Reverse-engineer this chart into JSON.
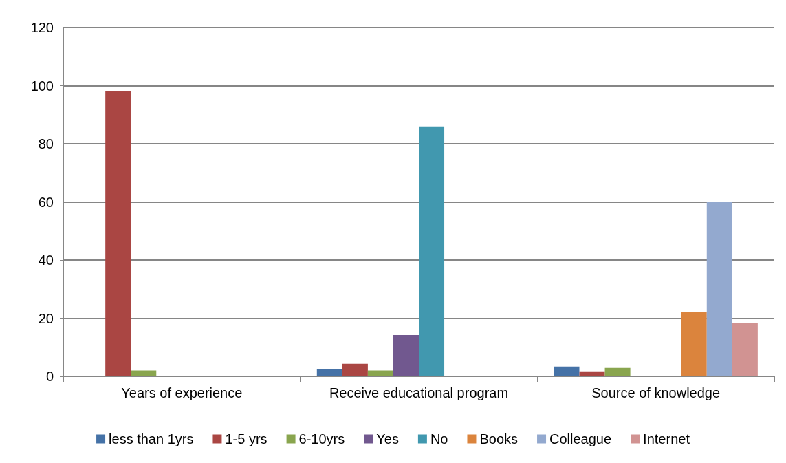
{
  "chart_data": {
    "type": "bar",
    "categories": [
      "Years of experience",
      "Receive educational program",
      "Source of knowledge"
    ],
    "series": [
      {
        "name": "less than 1yrs",
        "color": "#4572a7",
        "values": [
          null,
          2.5,
          3.4
        ]
      },
      {
        "name": "1-5 yrs",
        "color": "#aa4643",
        "values": [
          98,
          4.3,
          1.7
        ]
      },
      {
        "name": "6-10yrs",
        "color": "#89a54e",
        "values": [
          2,
          2,
          2.9
        ]
      },
      {
        "name": "Yes",
        "color": "#71588f",
        "values": [
          null,
          14.2,
          null
        ]
      },
      {
        "name": "No",
        "color": "#4198af",
        "values": [
          null,
          86,
          null
        ]
      },
      {
        "name": "Books",
        "color": "#db843d",
        "values": [
          null,
          null,
          22
        ]
      },
      {
        "name": "Colleague",
        "color": "#93a9cf",
        "values": [
          null,
          null,
          60
        ]
      },
      {
        "name": "Internet",
        "color": "#d19392",
        "values": [
          null,
          null,
          18.2
        ]
      }
    ],
    "ylim": [
      0,
      120
    ],
    "yticks": [
      0,
      20,
      40,
      60,
      80,
      100,
      120
    ],
    "grid": "y",
    "legend": "bottom"
  }
}
